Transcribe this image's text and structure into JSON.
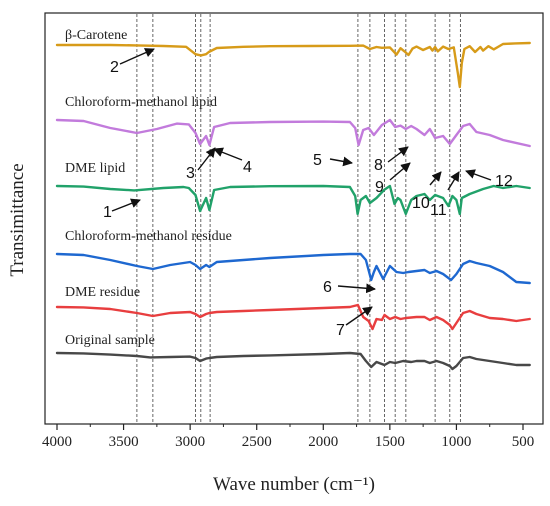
{
  "chart_data": {
    "type": "line",
    "title": "",
    "xlabel": "Wave number (cm⁻¹)",
    "ylabel": "Transimittance",
    "xlim": [
      4000,
      400
    ],
    "x_reversed": true,
    "xticks": [
      4000,
      3500,
      3000,
      2500,
      2000,
      1500,
      1000,
      500
    ],
    "yticks": [],
    "grid": false,
    "legend": "labels above each trace",
    "series": [
      {
        "name": "β-Carotene",
        "color": "#D79B19",
        "points": [
          [
            4000,
            0.0
          ],
          [
            3600,
            0.0
          ],
          [
            3400,
            0.2
          ],
          [
            3200,
            0.5
          ],
          [
            3030,
            0.9
          ],
          [
            2960,
            4.6
          ],
          [
            2920,
            5.2
          ],
          [
            2880,
            4.6
          ],
          [
            2860,
            3.5
          ],
          [
            2800,
            1.5
          ],
          [
            2600,
            0.9
          ],
          [
            2400,
            0.6
          ],
          [
            2100,
            0.5
          ],
          [
            1800,
            0.4
          ],
          [
            1700,
            0.3
          ],
          [
            1650,
            2.0
          ],
          [
            1600,
            1.0
          ],
          [
            1560,
            1.4
          ],
          [
            1500,
            1.2
          ],
          [
            1450,
            4.8
          ],
          [
            1420,
            1.6
          ],
          [
            1390,
            3.2
          ],
          [
            1360,
            5.0
          ],
          [
            1330,
            1.8
          ],
          [
            1300,
            0.8
          ],
          [
            1250,
            2.5
          ],
          [
            1200,
            1.0
          ],
          [
            1180,
            2.8
          ],
          [
            1160,
            1.0
          ],
          [
            1140,
            3.2
          ],
          [
            1100,
            0.8
          ],
          [
            1060,
            2.0
          ],
          [
            1020,
            1.2
          ],
          [
            990,
            14.0
          ],
          [
            975,
            21.0
          ],
          [
            960,
            9.0
          ],
          [
            940,
            2.0
          ],
          [
            900,
            0.6
          ],
          [
            860,
            3.5
          ],
          [
            820,
            1.0
          ],
          [
            800,
            2.8
          ],
          [
            760,
            0.6
          ],
          [
            720,
            2.2
          ],
          [
            650,
            -0.5
          ],
          [
            560,
            -0.8
          ],
          [
            450,
            -1.0
          ]
        ]
      },
      {
        "name": "Chloroform-methanol lipid",
        "color": "#C27BDC",
        "points": [
          [
            4000,
            0.0
          ],
          [
            3800,
            0.5
          ],
          [
            3600,
            4.0
          ],
          [
            3400,
            6.5
          ],
          [
            3250,
            4.5
          ],
          [
            3100,
            1.8
          ],
          [
            3010,
            2.2
          ],
          [
            2960,
            6.5
          ],
          [
            2925,
            12.0
          ],
          [
            2880,
            8.0
          ],
          [
            2855,
            12.5
          ],
          [
            2820,
            3.5
          ],
          [
            2700,
            1.5
          ],
          [
            2400,
            1.0
          ],
          [
            2000,
            0.8
          ],
          [
            1800,
            1.0
          ],
          [
            1760,
            4.0
          ],
          [
            1735,
            12.5
          ],
          [
            1700,
            5.0
          ],
          [
            1660,
            4.0
          ],
          [
            1620,
            7.5
          ],
          [
            1560,
            2.5
          ],
          [
            1500,
            0.0
          ],
          [
            1460,
            3.5
          ],
          [
            1420,
            2.8
          ],
          [
            1380,
            4.5
          ],
          [
            1340,
            3.0
          ],
          [
            1300,
            4.5
          ],
          [
            1240,
            7.5
          ],
          [
            1200,
            4.5
          ],
          [
            1160,
            9.0
          ],
          [
            1100,
            8.0
          ],
          [
            1050,
            12.0
          ],
          [
            1000,
            7.5
          ],
          [
            950,
            3.0
          ],
          [
            900,
            2.0
          ],
          [
            850,
            6.0
          ],
          [
            750,
            7.5
          ],
          [
            650,
            10.0
          ],
          [
            450,
            13.0
          ]
        ]
      },
      {
        "name": "DME lipid",
        "color": "#21A26A",
        "points": [
          [
            4000,
            0.0
          ],
          [
            3800,
            0.3
          ],
          [
            3600,
            1.5
          ],
          [
            3420,
            2.2
          ],
          [
            3200,
            1.0
          ],
          [
            3050,
            0.5
          ],
          [
            3010,
            1.0
          ],
          [
            2960,
            4.5
          ],
          [
            2925,
            12.5
          ],
          [
            2880,
            6.0
          ],
          [
            2855,
            12.0
          ],
          [
            2820,
            2.0
          ],
          [
            2700,
            0.5
          ],
          [
            2400,
            0.1
          ],
          [
            2000,
            0.0
          ],
          [
            1800,
            0.5
          ],
          [
            1760,
            5.0
          ],
          [
            1742,
            14.0
          ],
          [
            1720,
            7.0
          ],
          [
            1680,
            5.0
          ],
          [
            1650,
            8.5
          ],
          [
            1600,
            6.0
          ],
          [
            1540,
            1.8
          ],
          [
            1500,
            0.0
          ],
          [
            1465,
            9.0
          ],
          [
            1440,
            6.0
          ],
          [
            1420,
            7.0
          ],
          [
            1380,
            14.0
          ],
          [
            1340,
            7.0
          ],
          [
            1300,
            5.0
          ],
          [
            1240,
            4.0
          ],
          [
            1200,
            7.0
          ],
          [
            1160,
            4.5
          ],
          [
            1100,
            6.0
          ],
          [
            1060,
            10.0
          ],
          [
            1030,
            5.0
          ],
          [
            1000,
            7.0
          ],
          [
            975,
            14.0
          ],
          [
            960,
            6.0
          ],
          [
            900,
            4.0
          ],
          [
            860,
            3.0
          ],
          [
            800,
            1.5
          ],
          [
            720,
            0.0
          ],
          [
            650,
            1.0
          ],
          [
            550,
            0.0
          ],
          [
            450,
            1.0
          ]
        ]
      },
      {
        "name": "Chloroform-methanol residue",
        "color": "#1E68D0",
        "points": [
          [
            4000,
            0.0
          ],
          [
            3800,
            0.5
          ],
          [
            3600,
            3.0
          ],
          [
            3400,
            6.0
          ],
          [
            3280,
            7.5
          ],
          [
            3150,
            5.5
          ],
          [
            3000,
            4.0
          ],
          [
            2960,
            5.5
          ],
          [
            2925,
            7.5
          ],
          [
            2880,
            5.5
          ],
          [
            2855,
            6.5
          ],
          [
            2800,
            4.0
          ],
          [
            2600,
            3.0
          ],
          [
            2400,
            2.0
          ],
          [
            2000,
            0.5
          ],
          [
            1800,
            0.0
          ],
          [
            1720,
            0.0
          ],
          [
            1680,
            3.0
          ],
          [
            1640,
            13.0
          ],
          [
            1620,
            9.0
          ],
          [
            1600,
            6.0
          ],
          [
            1550,
            12.5
          ],
          [
            1500,
            6.0
          ],
          [
            1450,
            9.0
          ],
          [
            1400,
            9.5
          ],
          [
            1360,
            9.0
          ],
          [
            1300,
            8.5
          ],
          [
            1240,
            8.0
          ],
          [
            1200,
            9.5
          ],
          [
            1150,
            8.5
          ],
          [
            1100,
            10.0
          ],
          [
            1040,
            13.0
          ],
          [
            1000,
            10.0
          ],
          [
            950,
            5.0
          ],
          [
            900,
            3.5
          ],
          [
            850,
            4.5
          ],
          [
            750,
            6.0
          ],
          [
            650,
            9.0
          ],
          [
            550,
            14.0
          ],
          [
            450,
            14.5
          ]
        ]
      },
      {
        "name": "DME residue",
        "color": "#E83E3F",
        "points": [
          [
            4000,
            0.0
          ],
          [
            3800,
            0.2
          ],
          [
            3600,
            1.0
          ],
          [
            3400,
            3.0
          ],
          [
            3280,
            4.5
          ],
          [
            3150,
            3.0
          ],
          [
            3000,
            2.5
          ],
          [
            2960,
            3.5
          ],
          [
            2925,
            5.0
          ],
          [
            2880,
            3.5
          ],
          [
            2855,
            3.0
          ],
          [
            2800,
            2.5
          ],
          [
            2600,
            2.0
          ],
          [
            2400,
            1.5
          ],
          [
            2000,
            0.5
          ],
          [
            1800,
            0.0
          ],
          [
            1740,
            -1.0
          ],
          [
            1700,
            5.0
          ],
          [
            1660,
            7.0
          ],
          [
            1630,
            11.0
          ],
          [
            1600,
            6.0
          ],
          [
            1560,
            6.5
          ],
          [
            1540,
            4.0
          ],
          [
            1500,
            6.0
          ],
          [
            1460,
            5.0
          ],
          [
            1420,
            6.0
          ],
          [
            1380,
            5.5
          ],
          [
            1300,
            5.0
          ],
          [
            1240,
            5.0
          ],
          [
            1200,
            6.5
          ],
          [
            1150,
            5.0
          ],
          [
            1100,
            6.5
          ],
          [
            1050,
            9.0
          ],
          [
            1030,
            11.0
          ],
          [
            1000,
            8.0
          ],
          [
            950,
            3.0
          ],
          [
            900,
            2.0
          ],
          [
            850,
            3.5
          ],
          [
            750,
            5.5
          ],
          [
            650,
            6.0
          ],
          [
            550,
            7.0
          ],
          [
            450,
            6.0
          ]
        ]
      },
      {
        "name": "Original  sample",
        "color": "#484848",
        "points": [
          [
            4000,
            0.0
          ],
          [
            3800,
            0.2
          ],
          [
            3600,
            0.8
          ],
          [
            3400,
            1.5
          ],
          [
            3300,
            2.2
          ],
          [
            3150,
            2.0
          ],
          [
            3000,
            1.8
          ],
          [
            2960,
            2.5
          ],
          [
            2925,
            4.0
          ],
          [
            2880,
            2.8
          ],
          [
            2855,
            2.5
          ],
          [
            2800,
            2.0
          ],
          [
            2600,
            1.5
          ],
          [
            2400,
            1.2
          ],
          [
            2000,
            0.5
          ],
          [
            1800,
            0.0
          ],
          [
            1720,
            0.5
          ],
          [
            1680,
            4.0
          ],
          [
            1640,
            7.0
          ],
          [
            1600,
            4.5
          ],
          [
            1540,
            6.0
          ],
          [
            1500,
            4.5
          ],
          [
            1460,
            5.0
          ],
          [
            1400,
            4.0
          ],
          [
            1340,
            4.5
          ],
          [
            1300,
            4.0
          ],
          [
            1240,
            4.0
          ],
          [
            1200,
            5.0
          ],
          [
            1150,
            4.0
          ],
          [
            1100,
            5.0
          ],
          [
            1050,
            6.5
          ],
          [
            1030,
            8.0
          ],
          [
            1000,
            6.5
          ],
          [
            950,
            2.5
          ],
          [
            900,
            2.0
          ],
          [
            850,
            3.0
          ],
          [
            750,
            4.0
          ],
          [
            650,
            5.0
          ],
          [
            550,
            6.0
          ],
          [
            450,
            6.0
          ]
        ]
      }
    ],
    "reference_lines_x": [
      3400,
      3280,
      2960,
      2920,
      2850,
      1740,
      1650,
      1540,
      1460,
      1380,
      1160,
      1050,
      970
    ],
    "annotations": [
      "1",
      "2",
      "3",
      "4",
      "5",
      "6",
      "7",
      "8",
      "9",
      "10",
      "11",
      "12"
    ]
  }
}
